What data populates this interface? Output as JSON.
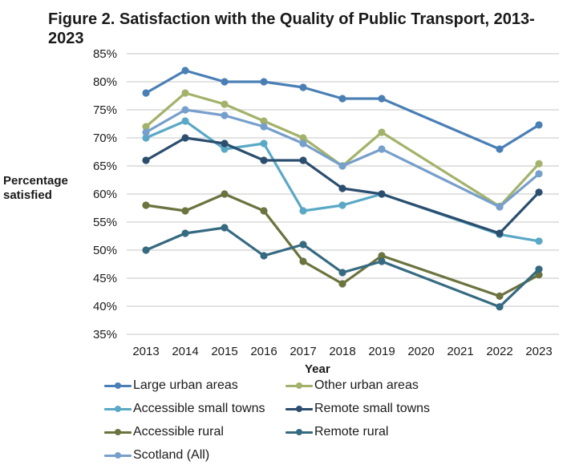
{
  "chart_data": {
    "type": "line",
    "title": "Figure 2. Satisfaction with the Quality of Public Transport, 2013-2023",
    "xlabel": "Year",
    "ylabel": "Percentage satisfied",
    "ylim": [
      35,
      85
    ],
    "yticks": [
      "35%",
      "40%",
      "45%",
      "50%",
      "55%",
      "60%",
      "65%",
      "70%",
      "75%",
      "80%",
      "85%"
    ],
    "ytick_values": [
      35,
      40,
      45,
      50,
      55,
      60,
      65,
      70,
      75,
      80,
      85
    ],
    "x": [
      "2013",
      "2014",
      "2015",
      "2016",
      "2017",
      "2018",
      "2019",
      "2020",
      "2021",
      "2022",
      "2023"
    ],
    "grid": "horizontal",
    "legend_position": "bottom",
    "series": [
      {
        "name": "Large urban areas",
        "color": "#4a7fb5",
        "values": [
          78,
          82,
          80,
          80,
          79,
          77,
          77,
          null,
          null,
          68,
          72.3
        ]
      },
      {
        "name": "Other urban areas",
        "color": "#a3b26a",
        "values": [
          72,
          78,
          76,
          73,
          70,
          65,
          71,
          null,
          null,
          57.8,
          65.4
        ]
      },
      {
        "name": "Accessible small towns",
        "color": "#5aa8c6",
        "values": [
          70,
          73,
          68,
          69,
          57,
          58,
          60,
          null,
          null,
          52.8,
          51.6
        ]
      },
      {
        "name": "Remote small towns",
        "color": "#2b4e6e",
        "values": [
          66,
          70,
          69,
          66,
          66,
          61,
          60,
          null,
          null,
          53,
          60.3
        ]
      },
      {
        "name": "Accessible rural",
        "color": "#6b733f",
        "values": [
          58,
          57,
          60,
          57,
          48,
          44,
          49,
          null,
          null,
          41.8,
          45.6
        ]
      },
      {
        "name": "Remote rural",
        "color": "#356a80",
        "values": [
          50,
          53,
          54,
          49,
          51,
          46,
          48,
          null,
          null,
          39.9,
          46.6
        ]
      },
      {
        "name": "Scotland (All)",
        "color": "#779fcb",
        "values": [
          71,
          75,
          74,
          72,
          69,
          65,
          68,
          null,
          null,
          57.7,
          63.6
        ]
      }
    ]
  }
}
